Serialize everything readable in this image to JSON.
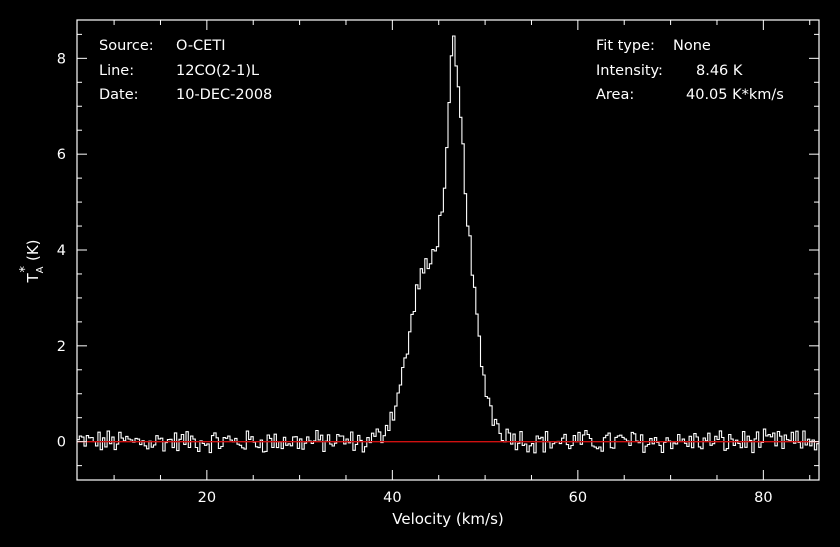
{
  "chart_data": {
    "type": "line",
    "xlabel": "Velocity (km/s)",
    "ylabel_base": "T",
    "ylabel_sup": "*",
    "ylabel_sub": "A",
    "ylabel_unit": "(K)",
    "xlim": [
      6,
      86
    ],
    "ylim": [
      -0.8,
      8.8
    ],
    "xticks": [
      20,
      40,
      60,
      80
    ],
    "yticks": [
      0,
      2,
      4,
      6,
      8
    ],
    "grid": false,
    "baseline": 0,
    "colors": {
      "background": "#000000",
      "frame": "#ffffff",
      "spectrum": "#ffffff",
      "baseline": "#d01010"
    },
    "annotations_left": [
      {
        "label": "Source:",
        "value": "O-CETI"
      },
      {
        "label": "Line:",
        "value": "12CO(2-1)L"
      },
      {
        "label": "Date:",
        "value": "10-DEC-2008"
      }
    ],
    "annotations_right": [
      {
        "label": "Fit type:",
        "value": "None"
      },
      {
        "label": "Intensity:",
        "value": "8.46 K"
      },
      {
        "label": "Area:",
        "value": "40.05 K*km/s"
      }
    ],
    "spectrum_points": [
      [
        36.0,
        0.0
      ],
      [
        37.0,
        -0.05
      ],
      [
        38.0,
        0.05
      ],
      [
        38.5,
        0.1
      ],
      [
        39.0,
        0.2
      ],
      [
        39.5,
        0.4
      ],
      [
        40.0,
        0.55
      ],
      [
        40.5,
        0.9
      ],
      [
        41.0,
        1.3
      ],
      [
        41.5,
        1.8
      ],
      [
        42.0,
        2.4
      ],
      [
        42.5,
        3.0
      ],
      [
        43.0,
        3.45
      ],
      [
        43.5,
        3.6
      ],
      [
        44.0,
        3.6
      ],
      [
        44.5,
        4.0
      ],
      [
        45.0,
        4.4
      ],
      [
        45.5,
        5.1
      ],
      [
        46.0,
        6.3
      ],
      [
        46.5,
        8.46
      ],
      [
        47.0,
        7.6
      ],
      [
        47.5,
        6.4
      ],
      [
        48.0,
        5.0
      ],
      [
        48.5,
        3.8
      ],
      [
        49.0,
        2.8
      ],
      [
        49.5,
        1.8
      ],
      [
        50.0,
        1.2
      ],
      [
        50.5,
        0.8
      ],
      [
        51.0,
        0.45
      ],
      [
        52.0,
        0.2
      ],
      [
        53.0,
        0.1
      ],
      [
        54.0,
        0.05
      ],
      [
        55.0,
        0.0
      ]
    ]
  }
}
